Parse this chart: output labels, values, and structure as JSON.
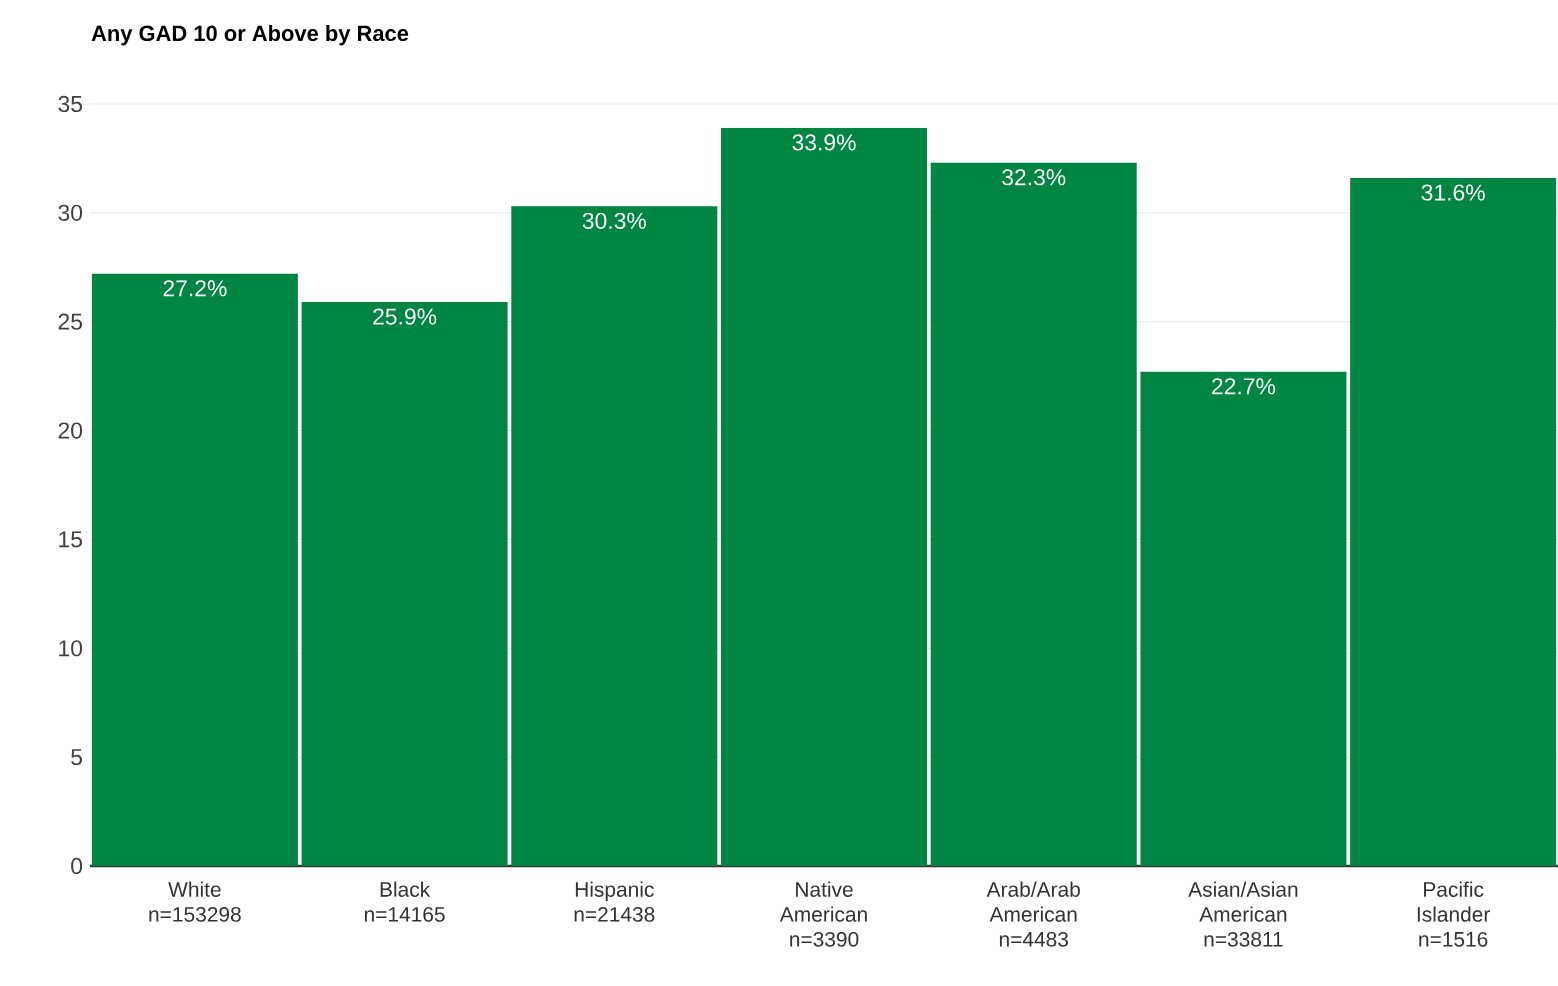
{
  "chart_data": {
    "type": "bar",
    "title": "Any GAD 10 or Above by Race",
    "categories": [
      "White n=153298",
      "Black n=14165",
      "Hispanic n=21438",
      "Native American n=3390",
      "Arab/Arab American n=4483",
      "Asian/Asian American n=33811",
      "Pacific Islander n=1516"
    ],
    "values": [
      27.2,
      25.9,
      30.3,
      33.9,
      32.3,
      22.7,
      31.6
    ],
    "value_labels": [
      "27.2%",
      "25.9%",
      "30.3%",
      "33.9%",
      "32.3%",
      "22.7%",
      "31.6%"
    ],
    "color": "#008542",
    "ylim": [
      0,
      35
    ],
    "yticks": [
      0,
      5,
      10,
      15,
      20,
      25,
      30,
      35
    ],
    "grid": "y"
  }
}
